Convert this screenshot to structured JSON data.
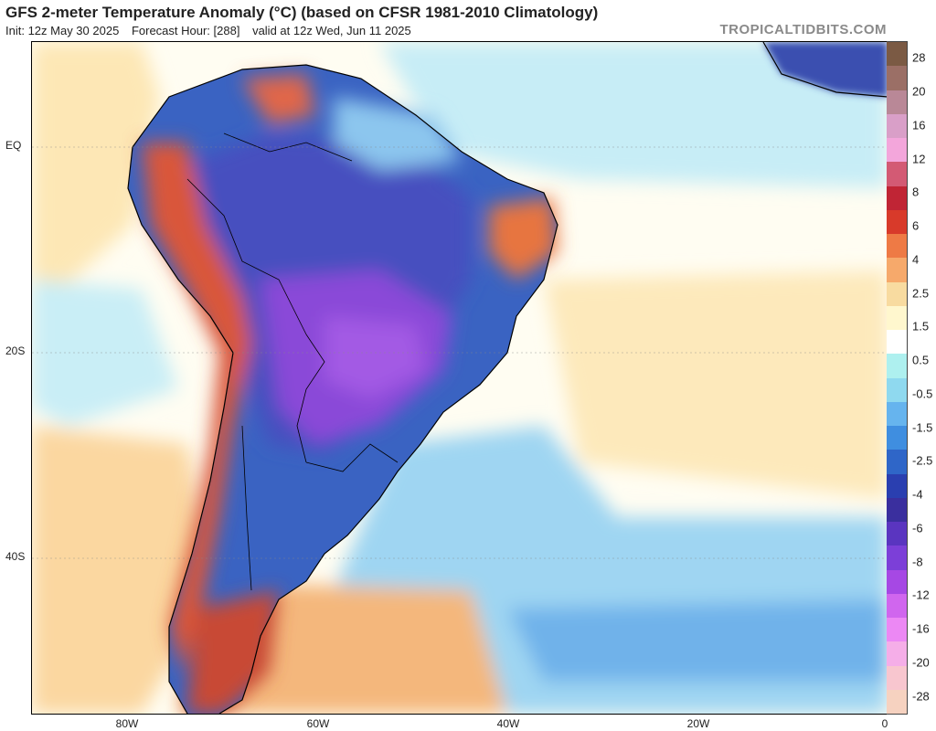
{
  "header": {
    "title": "GFS 2-meter Temperature Anomaly (°C) (based on CFSR 1981-2010 Climatology)",
    "init": "Init: 12z May 30 2025",
    "forecast_hour": "Forecast Hour: [288]",
    "valid": "valid at 12z Wed, Jun 11 2025"
  },
  "brand": "TROPICALTIDBITS.COM",
  "map": {
    "lat_labels": [
      "EQ",
      "20S",
      "40S"
    ],
    "lon_labels": [
      "80W",
      "60W",
      "40W",
      "20W",
      "0"
    ],
    "colors": {
      "very_cold": "#7a3bd6",
      "cold": "#2f56b8",
      "cool": "#69b3ec",
      "mild_cool": "#aee3f6",
      "neutral": "#ffffff",
      "mild_warm": "#fde7b5",
      "warm": "#f3b071",
      "hot": "#d9442f",
      "boundary": "#000000"
    }
  },
  "colorbar": {
    "labels": [
      "28",
      "20",
      "16",
      "12",
      "8",
      "6",
      "4",
      "2.5",
      "1.5",
      "0.5",
      "-0.5",
      "-1.5",
      "-2.5",
      "-4",
      "-6",
      "-8",
      "-12",
      "-16",
      "-20",
      "-28"
    ],
    "colors": [
      "#7b5a44",
      "#9b6f66",
      "#b98897",
      "#d99fc8",
      "#f3a6db",
      "#d35a74",
      "#c02535",
      "#d83a2a",
      "#ee7a45",
      "#f6a96b",
      "#f8dba0",
      "#fff7ce",
      "#ffffff",
      "#aef0ef",
      "#8fd9ef",
      "#66b4ee",
      "#3f8ee0",
      "#2f66c8",
      "#2a3fb0",
      "#3a2f9e",
      "#5a35c0",
      "#7c3fd8",
      "#a648e4",
      "#d066ee",
      "#ec88f4",
      "#f5aee8",
      "#f8c6cf",
      "#f6d2c0"
    ]
  }
}
